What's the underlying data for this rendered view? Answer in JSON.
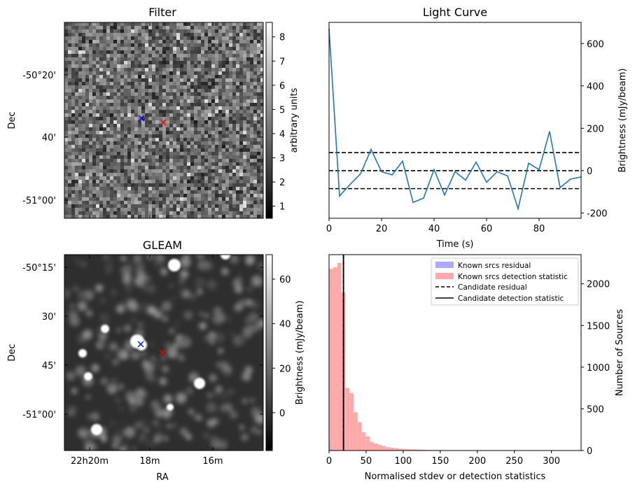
{
  "panels": {
    "filter": {
      "title": "Filter",
      "ylabel": "Dec",
      "ytick_labels": [
        "-50°20'",
        "40'",
        "-51°00'"
      ],
      "colorbar": {
        "label": "arbitrary units",
        "range": [
          0.5,
          8.6
        ],
        "ticks": [
          "1",
          "2",
          "3",
          "4",
          "5",
          "6",
          "7",
          "8"
        ],
        "cmap": "gray"
      },
      "markers": [
        {
          "name": "candidate",
          "color": "#0000ff",
          "symbol": "x"
        },
        {
          "name": "offset",
          "color": "#ff0000",
          "symbol": "x"
        }
      ]
    },
    "gleam": {
      "title": "GLEAM",
      "ylabel": "Dec",
      "xlabel": "RA",
      "ytick_labels": [
        "-50°15'",
        "30'",
        "45'",
        "-51°00'"
      ],
      "xtick_labels": [
        "22h20m",
        "18m",
        "16m"
      ],
      "colorbar": {
        "label": "Brightness (mJy/beam)",
        "range": [
          -17,
          71
        ],
        "ticks": [
          "0",
          "20",
          "40",
          "60"
        ],
        "cmap": "gray"
      },
      "markers": [
        {
          "name": "candidate",
          "color": "#0000ff",
          "symbol": "x"
        },
        {
          "name": "offset",
          "color": "#ff0000",
          "symbol": "x"
        }
      ]
    }
  },
  "chart_data": [
    {
      "type": "line",
      "title": "Light Curve",
      "xlabel": "Time (s)",
      "ylabel": "Brightness (mJy/beam)",
      "xlim": [
        0,
        96
      ],
      "ylim": [
        -225,
        700
      ],
      "xticks": [
        0,
        20,
        40,
        60,
        80
      ],
      "yticks": [
        -200,
        0,
        200,
        400,
        600
      ],
      "y_axis_side": "right",
      "color": "#1f77b4",
      "series": [
        {
          "x": [
            0,
            4,
            8,
            12,
            16,
            20,
            24,
            28,
            32,
            36,
            40,
            44,
            48,
            52,
            56,
            60,
            64,
            68,
            72,
            76,
            80,
            84,
            88,
            92,
            96
          ],
          "y": [
            670,
            -120,
            -65,
            -15,
            100,
            -5,
            -20,
            45,
            -150,
            -130,
            5,
            -115,
            -5,
            -45,
            40,
            -55,
            -5,
            -25,
            -180,
            35,
            5,
            185,
            -80,
            -40,
            -30
          ]
        }
      ],
      "hlines": [
        {
          "y": 85,
          "style": "dashed",
          "color": "#000000"
        },
        {
          "y": 0,
          "style": "dashed",
          "color": "#000000"
        },
        {
          "y": -85,
          "style": "dashed",
          "color": "#000000"
        }
      ]
    },
    {
      "type": "histogram",
      "xlabel": "Normalised stdev or detection statistics",
      "ylabel": "Number of Sources",
      "xlim": [
        0,
        340
      ],
      "ylim": [
        0,
        2350
      ],
      "xticks": [
        0,
        50,
        100,
        150,
        200,
        250,
        300
      ],
      "yticks": [
        0,
        500,
        1000,
        1500,
        2000
      ],
      "y_axis_side": "right",
      "legend_position": "top-right",
      "legend": [
        "Known srcs residual",
        "Known srcs detection statistic",
        "Candidate residual",
        "Candidate detection statistic"
      ],
      "series": [
        {
          "name": "Known srcs residual",
          "color": "#aaaaff",
          "bin_edges": [
            0,
            2,
            4
          ],
          "counts": [
            110,
            20
          ]
        },
        {
          "name": "Known srcs detection statistic",
          "color": "#ffaaaa",
          "bin_width": 5.5,
          "bin_start": 0,
          "counts": [
            2180,
            2200,
            2250,
            1900,
            750,
            690,
            460,
            340,
            220,
            170,
            105,
            85,
            70,
            55,
            40,
            35,
            28,
            22,
            20,
            16,
            14,
            12,
            10,
            8,
            7,
            6,
            6,
            5,
            5,
            4,
            4,
            3,
            3,
            3,
            2,
            2,
            2,
            2,
            2,
            1,
            1,
            1,
            1,
            1,
            1,
            1,
            1,
            1,
            1,
            1,
            1,
            1,
            1,
            1,
            1,
            1,
            1,
            1,
            1
          ]
        }
      ],
      "vlines": [
        {
          "name": "Candidate residual",
          "x": 19.5,
          "style": "dashed",
          "color": "#000000"
        },
        {
          "name": "Candidate detection statistic",
          "x": 19.5,
          "style": "solid",
          "color": "#000000"
        }
      ]
    }
  ]
}
